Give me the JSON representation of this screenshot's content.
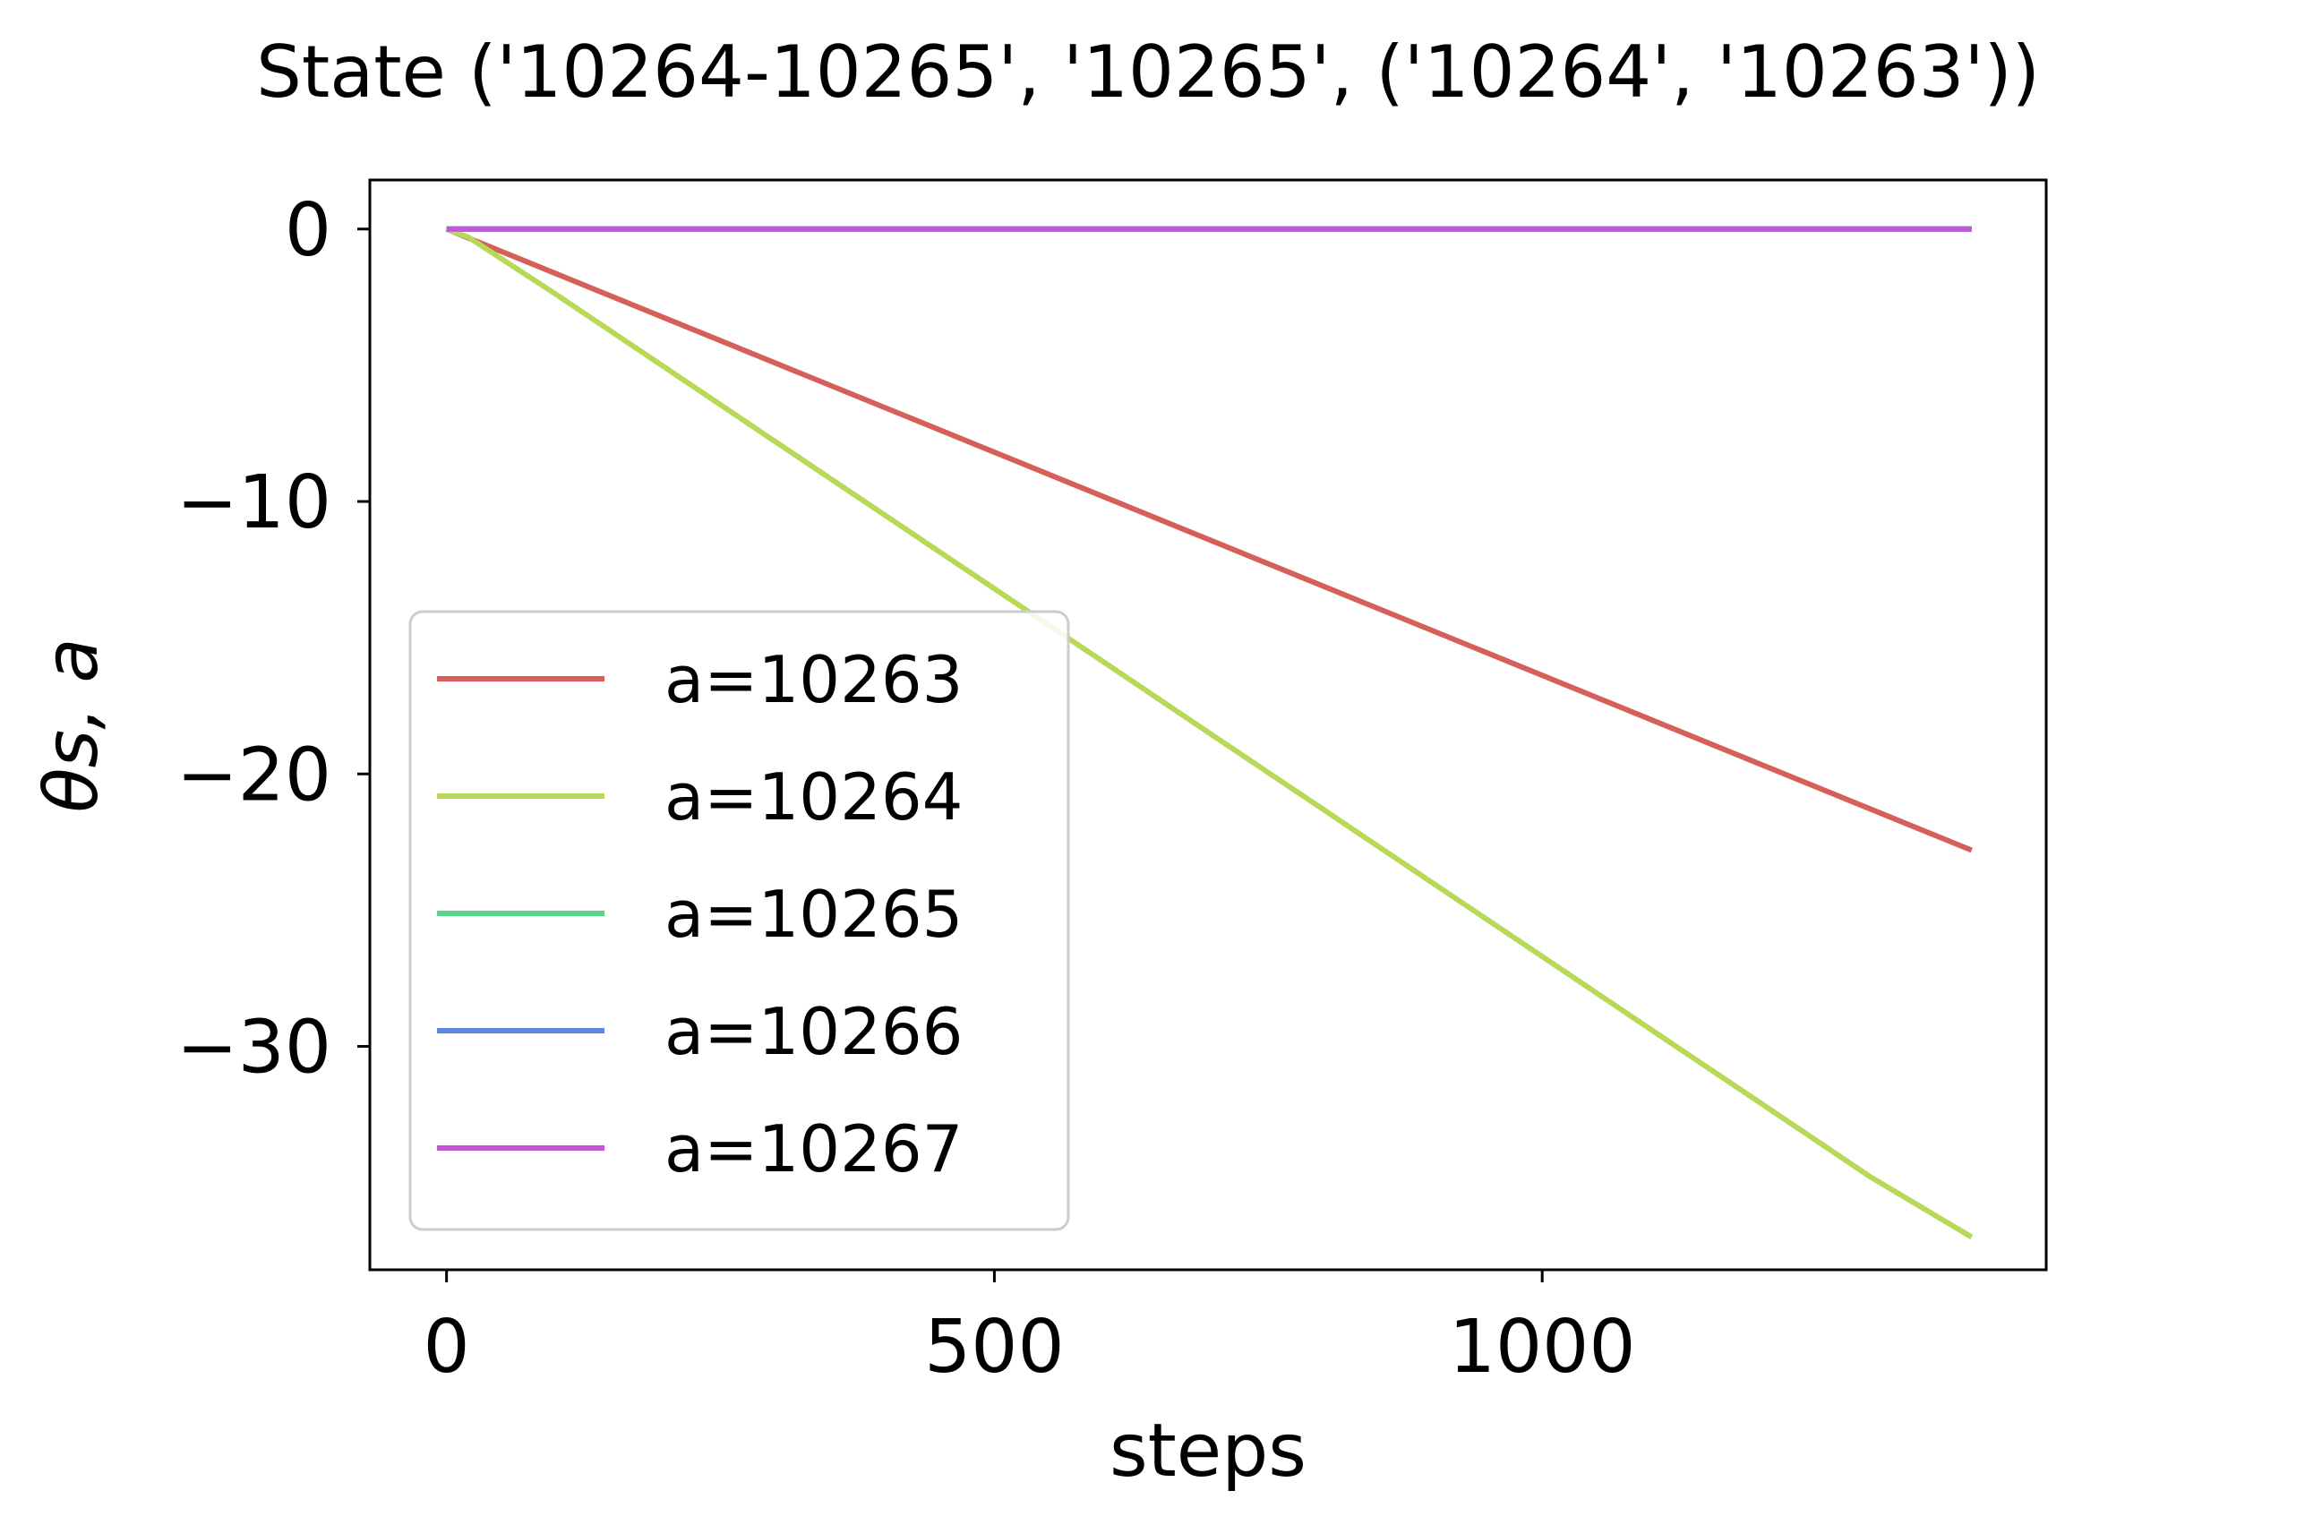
{
  "chart_data": {
    "type": "line",
    "title": "State ('10264-10265', '10265', ('10264', '10263'))",
    "xlabel": "steps",
    "ylabel": "θs, a",
    "xlim": [
      -70,
      1460
    ],
    "ylim": [
      -38.2,
      1.8
    ],
    "xticks": [
      0,
      500,
      1000
    ],
    "xtick_labels": [
      "0",
      "500",
      "1000"
    ],
    "yticks": [
      0,
      -10,
      -20,
      -30
    ],
    "ytick_labels": [
      "0",
      "−10",
      "−20",
      "−30"
    ],
    "grid": false,
    "legend_position": "lower-left",
    "series": [
      {
        "name": "a=10263",
        "color": "#d65f5a",
        "x": [
          0,
          1392
        ],
        "y": [
          0,
          -22.8
        ]
      },
      {
        "name": "a=10264",
        "color": "#b8d957",
        "x": [
          0,
          20,
          100,
          200,
          300,
          400,
          500,
          600,
          700,
          800,
          900,
          1000,
          1100,
          1200,
          1300,
          1392
        ],
        "y": [
          0,
          -0.3,
          -2.4,
          -5.1,
          -7.8,
          -10.5,
          -13.2,
          -15.9,
          -18.6,
          -21.3,
          -24.0,
          -26.7,
          -29.4,
          -32.1,
          -34.8,
          -37.0
        ]
      },
      {
        "name": "a=10265",
        "color": "#57d68a",
        "x": [
          0,
          1392
        ],
        "y": [
          0,
          0
        ]
      },
      {
        "name": "a=10266",
        "color": "#5b86e5",
        "x": [
          0,
          1392
        ],
        "y": [
          0,
          0
        ]
      },
      {
        "name": "a=10267",
        "color": "#c257d6",
        "x": [
          0,
          1392
        ],
        "y": [
          0,
          0
        ]
      }
    ]
  }
}
